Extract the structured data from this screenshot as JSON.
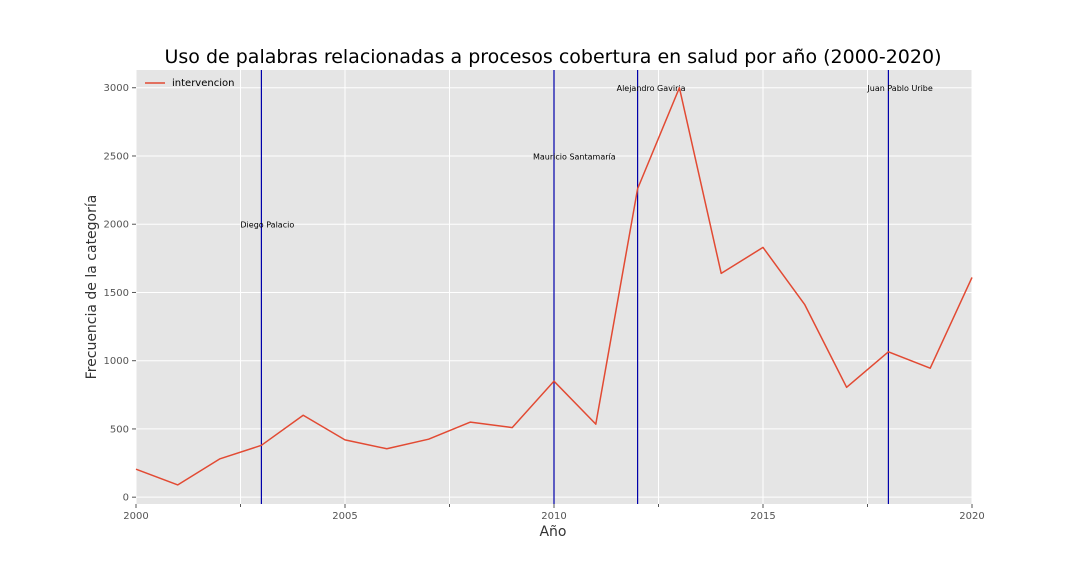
{
  "chart_data": {
    "type": "line",
    "title": "Uso de palabras relacionadas a procesos cobertura en salud por año (2000-2020)",
    "xlabel": "Año",
    "ylabel": "Frecuencia de la categoría",
    "xlim": [
      2000,
      2020
    ],
    "ylim": [
      -50,
      3130
    ],
    "x_ticks": [
      2000,
      2005,
      2010,
      2015,
      2020
    ],
    "x_minor_ticks": [
      2002.5,
      2007.5,
      2012.5,
      2017.5
    ],
    "y_ticks": [
      0,
      500,
      1000,
      1500,
      2000,
      2500,
      3000
    ],
    "grid": true,
    "legend_position": "top-left",
    "series": [
      {
        "name": "intervencion",
        "color": "#E24A33",
        "x": [
          2000,
          2001,
          2002,
          2003,
          2004,
          2005,
          2006,
          2007,
          2008,
          2009,
          2010,
          2011,
          2012,
          2013,
          2014,
          2015,
          2016,
          2017,
          2018,
          2019,
          2020
        ],
        "y": [
          205,
          90,
          280,
          380,
          600,
          420,
          355,
          425,
          550,
          510,
          850,
          535,
          2260,
          3000,
          1640,
          1830,
          1410,
          805,
          1065,
          945,
          1610
        ]
      }
    ],
    "vlines": [
      {
        "x": 2003,
        "label": "Diego Palacio",
        "label_y": 2000,
        "color": "#0000AA"
      },
      {
        "x": 2010,
        "label": "Mauricio Santamaría",
        "label_y": 2500,
        "color": "#0000AA"
      },
      {
        "x": 2012,
        "label": "Alejandro Gaviria",
        "label_y": 3000,
        "color": "#0000AA"
      },
      {
        "x": 2018,
        "label": "Juan Pablo Uribe",
        "label_y": 3000,
        "color": "#0000AA"
      }
    ]
  }
}
